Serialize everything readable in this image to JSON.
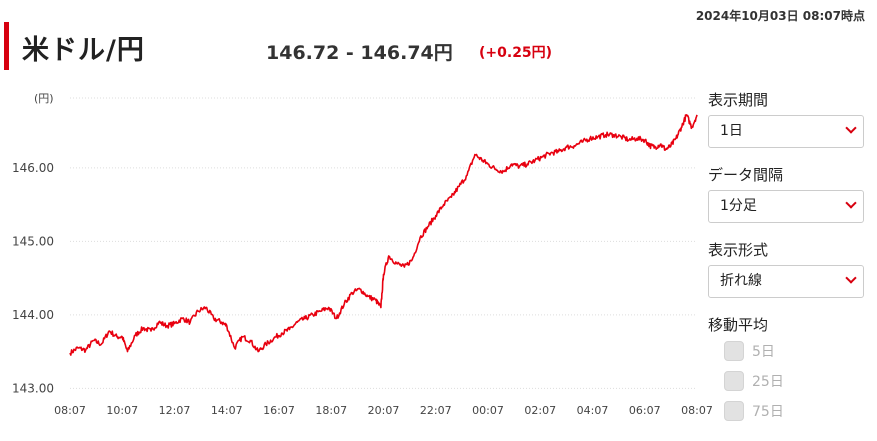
{
  "header": {
    "timestamp": "2024年10月03日 08:07時点",
    "pair": "米ドル/円",
    "rate": "146.72 - 146.74円",
    "change": "(+0.25円)"
  },
  "controls": {
    "period_label": "表示期間",
    "period_value": "1日",
    "interval_label": "データ間隔",
    "interval_value": "1分足",
    "style_label": "表示形式",
    "style_value": "折れ線",
    "ma_label": "移動平均",
    "ma_options": [
      "5日",
      "25日",
      "75日"
    ]
  },
  "colors": {
    "accent": "#d7000f",
    "line": "#e8000f"
  },
  "chart_data": {
    "type": "line",
    "ylabel": "(円)",
    "ylim": [
      142.95,
      146.95
    ],
    "yticks": [
      143,
      144,
      145,
      146
    ],
    "ytick_labels": [
      "143.00",
      "144.00",
      "145.00",
      "146.00"
    ],
    "xlim": [
      0,
      24
    ],
    "xticks": [
      0,
      2,
      4,
      6,
      8,
      10,
      12,
      14,
      16,
      18,
      20,
      22,
      24
    ],
    "xtick_labels": [
      "08:07",
      "10:07",
      "12:07",
      "14:07",
      "16:07",
      "18:07",
      "20:07",
      "22:07",
      "00:07",
      "02:07",
      "04:07",
      "06:07",
      "08:07"
    ],
    "grid": true,
    "series": [
      {
        "x": [
          0,
          0.3,
          0.6,
          0.9,
          1.2,
          1.5,
          1.8,
          2.0,
          2.2,
          2.5,
          2.8,
          3.1,
          3.4,
          3.7,
          4.0,
          4.3,
          4.6,
          4.9,
          5.2,
          5.5,
          5.8,
          6.0,
          6.3,
          6.6,
          6.9,
          7.2,
          7.5,
          7.8,
          8.1,
          8.4,
          8.7,
          9.0,
          9.3,
          9.6,
          9.9,
          10.2,
          10.5,
          10.8,
          11.1,
          11.4,
          11.7,
          11.9,
          12.0,
          12.2,
          12.5,
          12.8,
          13.1,
          13.4,
          13.7,
          14.0,
          14.3,
          14.6,
          14.9,
          15.2,
          15.5,
          15.8,
          16.0,
          16.3,
          16.6,
          16.9,
          17.2,
          17.5,
          17.8,
          18.1,
          18.4,
          18.7,
          19.0,
          19.3,
          19.6,
          19.9,
          20.2,
          20.5,
          20.8,
          21.1,
          21.4,
          21.7,
          22.0,
          22.2,
          22.4,
          22.6,
          22.8,
          23.0,
          23.2,
          23.4,
          23.6,
          23.8,
          24.0
        ],
        "values": [
          143.48,
          143.55,
          143.52,
          143.65,
          143.6,
          143.78,
          143.7,
          143.7,
          143.5,
          143.72,
          143.82,
          143.78,
          143.9,
          143.85,
          143.88,
          143.95,
          143.9,
          144.05,
          144.1,
          143.95,
          143.9,
          143.85,
          143.55,
          143.7,
          143.65,
          143.5,
          143.6,
          143.68,
          143.75,
          143.8,
          143.9,
          143.95,
          144.0,
          144.05,
          144.1,
          143.95,
          144.15,
          144.3,
          144.35,
          144.25,
          144.2,
          144.1,
          144.55,
          144.8,
          144.7,
          144.65,
          144.75,
          145.05,
          145.2,
          145.35,
          145.5,
          145.6,
          145.75,
          145.9,
          146.18,
          146.1,
          146.05,
          145.98,
          145.95,
          146.05,
          146.02,
          146.05,
          146.1,
          146.15,
          146.2,
          146.22,
          146.28,
          146.3,
          146.35,
          146.4,
          146.42,
          146.45,
          146.45,
          146.42,
          146.38,
          146.4,
          146.38,
          146.3,
          146.28,
          146.32,
          146.25,
          146.3,
          146.4,
          146.55,
          146.72,
          146.55,
          146.72
        ]
      }
    ]
  }
}
